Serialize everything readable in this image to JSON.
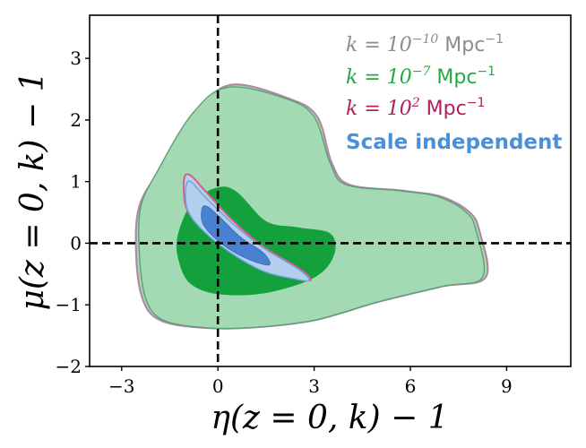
{
  "chart_data": {
    "type": "contour",
    "xlabel": "η(z = 0, k) − 1",
    "ylabel": "μ(z = 0, k) − 1",
    "xlim": [
      -4.0,
      11.0
    ],
    "ylim": [
      -2.0,
      3.7
    ],
    "xticks": [
      -3,
      0,
      3,
      6,
      9
    ],
    "yticks": [
      -2,
      -1,
      0,
      1,
      2,
      3
    ],
    "reference_lines": {
      "vertical_x": 0,
      "horizontal_y": 0,
      "style": "dashed"
    },
    "legend_position": "top-right",
    "series": [
      {
        "name": "k = 10^-10 Mpc^-1",
        "legend_parts": [
          "k = 10",
          "−10",
          " Mpc",
          "−1"
        ],
        "color": "#8c8c8c",
        "contours": [
          {
            "level": "outer",
            "points": [
              [
                -2.55,
                -0.15
              ],
              [
                -2.35,
                -0.9
              ],
              [
                -1.8,
                -1.25
              ],
              [
                -0.5,
                -1.37
              ],
              [
                1.0,
                -1.37
              ],
              [
                3.0,
                -1.25
              ],
              [
                5.0,
                -0.95
              ],
              [
                7.0,
                -0.7
              ],
              [
                8.35,
                -0.55
              ],
              [
                8.15,
                0.2
              ],
              [
                7.85,
                0.5
              ],
              [
                7.0,
                0.75
              ],
              [
                5.8,
                0.85
              ],
              [
                4.1,
                0.95
              ],
              [
                3.55,
                1.3
              ],
              [
                3.1,
                2.05
              ],
              [
                2.2,
                2.35
              ],
              [
                0.4,
                2.57
              ],
              [
                -0.7,
                2.1
              ],
              [
                -1.8,
                1.2
              ],
              [
                -2.45,
                0.6
              ]
            ]
          }
        ]
      },
      {
        "name": "k = 10^-7 Mpc^-1",
        "legend_parts": [
          "k = 10",
          "−7",
          " Mpc",
          "−1"
        ],
        "color": "#22a846",
        "contours": [
          {
            "level": "outer",
            "points": [
              [
                -2.45,
                -0.15
              ],
              [
                -2.25,
                -0.9
              ],
              [
                -1.7,
                -1.25
              ],
              [
                -0.4,
                -1.37
              ],
              [
                1.0,
                -1.37
              ],
              [
                3.0,
                -1.25
              ],
              [
                5.0,
                -0.95
              ],
              [
                7.0,
                -0.7
              ],
              [
                8.25,
                -0.55
              ],
              [
                8.05,
                0.2
              ],
              [
                7.75,
                0.5
              ],
              [
                6.9,
                0.75
              ],
              [
                5.7,
                0.85
              ],
              [
                4.0,
                0.95
              ],
              [
                3.5,
                1.3
              ],
              [
                3.0,
                2.05
              ],
              [
                2.1,
                2.35
              ],
              [
                0.3,
                2.53
              ],
              [
                -0.8,
                2.1
              ],
              [
                -1.85,
                1.2
              ],
              [
                -2.4,
                0.6
              ]
            ]
          },
          {
            "level": "inner",
            "points": [
              [
                -1.25,
                0.1
              ],
              [
                -1.2,
                -0.3
              ],
              [
                -0.85,
                -0.65
              ],
              [
                0.0,
                -0.82
              ],
              [
                1.5,
                -0.8
              ],
              [
                3.0,
                -0.55
              ],
              [
                3.6,
                -0.2
              ],
              [
                3.5,
                0.15
              ],
              [
                2.5,
                0.25
              ],
              [
                1.5,
                0.35
              ],
              [
                0.6,
                0.82
              ],
              [
                0.0,
                0.9
              ],
              [
                -0.8,
                0.65
              ]
            ]
          }
        ]
      },
      {
        "name": "k = 10^2 Mpc^-1",
        "legend_parts": [
          "k = 10",
          "2",
          " Mpc",
          "−1"
        ],
        "color": "#c8285a",
        "contours": [
          {
            "level": "outer",
            "points": [
              [
                -1.05,
                1.05
              ],
              [
                -1.0,
                0.6
              ],
              [
                -0.6,
                0.3
              ],
              [
                0.3,
                -0.1
              ],
              [
                1.4,
                -0.42
              ],
              [
                2.4,
                -0.55
              ],
              [
                2.9,
                -0.6
              ],
              [
                2.5,
                -0.4
              ],
              [
                1.4,
                -0.05
              ],
              [
                0.5,
                0.35
              ],
              [
                -0.4,
                0.85
              ],
              [
                -0.85,
                1.1
              ]
            ]
          }
        ]
      },
      {
        "name": "Scale independent",
        "color": "#4a90d9",
        "contours": [
          {
            "level": "outer",
            "points": [
              [
                -1.0,
                0.9
              ],
              [
                -0.95,
                0.55
              ],
              [
                -0.55,
                0.25
              ],
              [
                0.3,
                -0.12
              ],
              [
                1.4,
                -0.45
              ],
              [
                2.4,
                -0.58
              ],
              [
                2.85,
                -0.6
              ],
              [
                2.5,
                -0.42
              ],
              [
                1.4,
                -0.07
              ],
              [
                0.5,
                0.3
              ],
              [
                -0.4,
                0.75
              ],
              [
                -0.85,
                1.0
              ]
            ]
          },
          {
            "level": "inner",
            "points": [
              [
                -0.5,
                0.55
              ],
              [
                -0.45,
                0.3
              ],
              [
                0.1,
                0.0
              ],
              [
                0.9,
                -0.25
              ],
              [
                1.6,
                -0.35
              ],
              [
                1.4,
                -0.15
              ],
              [
                0.7,
                0.1
              ],
              [
                0.0,
                0.45
              ],
              [
                -0.35,
                0.6
              ]
            ]
          }
        ]
      }
    ]
  }
}
